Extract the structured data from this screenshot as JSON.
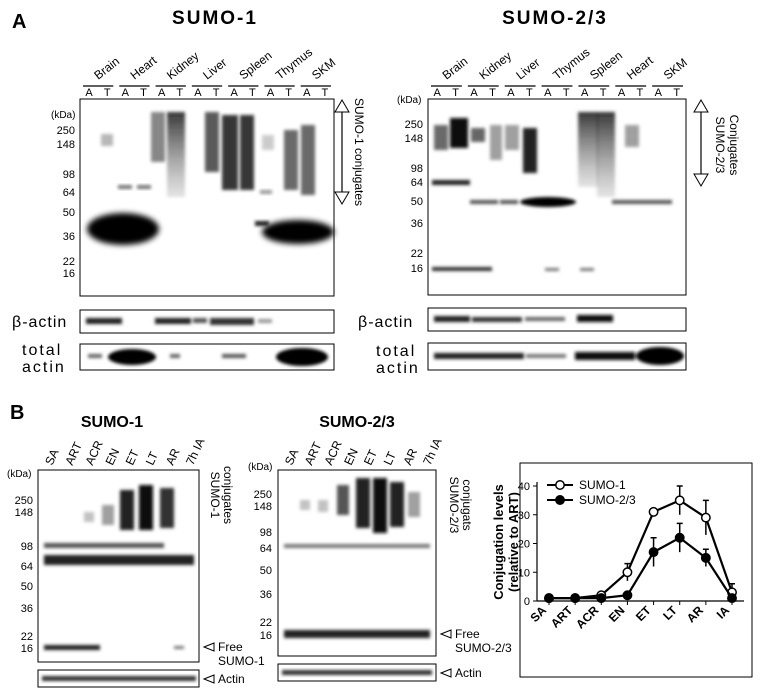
{
  "panel_a": {
    "letter": "A",
    "left": {
      "title": "SUMO-1",
      "tissues": [
        "Brain",
        "Heart",
        "Kidney",
        "Liver",
        "Spleen",
        "Thymus",
        "SKM"
      ],
      "lanes": [
        "A",
        "T",
        "A",
        "T",
        "A",
        "T",
        "A",
        "T",
        "A",
        "T",
        "A",
        "T",
        "A",
        "T"
      ],
      "kda_label": "(kDa)",
      "markers": [
        "250",
        "148",
        "98",
        "64",
        "50",
        "36",
        "22",
        "16"
      ],
      "bracket_label": "SUMO-1 conjugates",
      "beta_label": "β-actin",
      "total_label_1": "total",
      "total_label_2": "actin"
    },
    "right": {
      "title": "SUMO-2/3",
      "tissues": [
        "Brain",
        "Kidney",
        "Liver",
        "Thymus",
        "Spleen",
        "Heart",
        "SKM"
      ],
      "lanes": [
        "A",
        "T",
        "A",
        "T",
        "A",
        "T",
        "A",
        "T",
        "A",
        "T",
        "A",
        "T",
        "A",
        "T"
      ],
      "kda_label": "(kDa)",
      "markers": [
        "250",
        "148",
        "98",
        "64",
        "50",
        "36",
        "22",
        "16"
      ],
      "bracket_label_1": "SUMO-2/3",
      "bracket_label_2": "Conjugates",
      "beta_label": "β-actin",
      "total_label_1": "total",
      "total_label_2": "actin"
    }
  },
  "panel_b": {
    "letter": "B",
    "blot1": {
      "title": "SUMO-1",
      "lanes": [
        "SA",
        "ART",
        "ACR",
        "EN",
        "ET",
        "LT",
        "AR",
        "7h IA"
      ],
      "kda_label": "(kDa)",
      "markers": [
        "250",
        "148",
        "98",
        "64",
        "50",
        "36",
        "22",
        "16"
      ],
      "conj_label_1": "SUMO-1",
      "conj_label_2": "conjugates",
      "free_label_1": "Free",
      "free_label_2": "SUMO-1",
      "actin_label": "Actin"
    },
    "blot2": {
      "title": "SUMO-2/3",
      "lanes": [
        "SA",
        "ART",
        "ACR",
        "EN",
        "ET",
        "LT",
        "AR",
        "7h IA"
      ],
      "kda_label": "(kDa)",
      "markers": [
        "250",
        "148",
        "98",
        "64",
        "50",
        "36",
        "22",
        "16"
      ],
      "conj_label_1": "SUMO-2/3",
      "conj_label_2": "conjugats",
      "free_label_1": "Free",
      "free_label_2": "SUMO-2/3",
      "actin_label": "Actin"
    }
  },
  "chart_data": {
    "type": "line",
    "categories": [
      "SA",
      "ART",
      "ACR",
      "EN",
      "ET",
      "LT",
      "AR",
      "IA"
    ],
    "ylabel": "Conjugation levels (relative to ART)",
    "ylabel_1": "Conjugation levels",
    "ylabel_2": "(relative to ART)",
    "ylim": [
      0,
      40
    ],
    "yticks": [
      0,
      10,
      20,
      30,
      40
    ],
    "legend_position": "top-left",
    "series": [
      {
        "name": "SUMO-1",
        "marker": "open-circle",
        "values": [
          1,
          1,
          2,
          10,
          31,
          35,
          29,
          3
        ],
        "errors": [
          0.5,
          0.5,
          1,
          3,
          1,
          5,
          6,
          3
        ]
      },
      {
        "name": "SUMO-2/3",
        "marker": "filled-circle",
        "values": [
          1,
          1,
          1,
          2,
          17,
          22,
          15,
          1
        ],
        "errors": [
          0.5,
          0.5,
          0.5,
          1,
          5,
          5,
          3,
          1
        ]
      }
    ]
  }
}
